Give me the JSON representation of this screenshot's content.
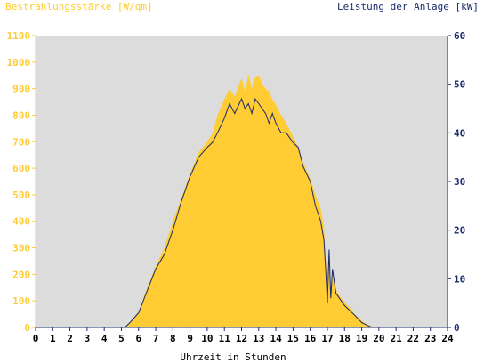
{
  "chart_data": {
    "type": "area",
    "xlabel": "Uhrzeit in Stunden",
    "y_left_label": "Bestrahlungsstärke [W/qm]",
    "y_right_label": "Leistung der Anlage [kW]",
    "xlim": [
      0,
      24
    ],
    "ylim_left": [
      0,
      1100
    ],
    "ylim_right": [
      0,
      60
    ],
    "x_ticks": [
      0,
      1,
      2,
      3,
      4,
      5,
      6,
      7,
      8,
      9,
      10,
      11,
      12,
      13,
      14,
      15,
      16,
      17,
      18,
      19,
      20,
      21,
      22,
      23,
      24
    ],
    "y_left_ticks": [
      0,
      100,
      200,
      300,
      400,
      500,
      600,
      700,
      800,
      900,
      1000,
      1100
    ],
    "y_right_ticks": [
      0,
      10,
      20,
      30,
      40,
      50,
      60
    ],
    "grid": false,
    "colors": {
      "plot_bg": "#dcdcdc",
      "irradiance_fill": "#ffcc33",
      "power_line": "#1a2a6c",
      "left_axis_text": "#ffcc33",
      "right_axis_text": "#1a2a6c",
      "x_axis_text": "#000000"
    },
    "series": [
      {
        "name": "Bestrahlungsstärke [W/qm]",
        "axis": "left",
        "style": "area",
        "x": [
          5.2,
          5.5,
          6.0,
          6.5,
          7.0,
          7.5,
          8.0,
          8.5,
          9.0,
          9.5,
          10.0,
          10.3,
          10.6,
          11.0,
          11.3,
          11.6,
          12.0,
          12.2,
          12.4,
          12.6,
          12.8,
          13.0,
          13.2,
          13.4,
          13.6,
          13.8,
          14.0,
          14.3,
          14.6,
          15.0,
          15.3,
          15.6,
          16.0,
          16.3,
          16.6,
          16.8,
          16.9,
          17.0,
          17.1,
          17.2,
          17.3,
          17.5,
          17.7,
          18.0,
          18.3,
          18.6,
          19.0,
          19.3,
          19.6,
          19.9,
          20.0
        ],
        "y": [
          0,
          20,
          60,
          150,
          230,
          300,
          400,
          490,
          580,
          660,
          700,
          730,
          800,
          860,
          900,
          870,
          940,
          890,
          955,
          900,
          945,
          950,
          920,
          900,
          890,
          860,
          840,
          800,
          770,
          720,
          680,
          620,
          560,
          500,
          450,
          380,
          260,
          150,
          250,
          120,
          200,
          140,
          120,
          95,
          75,
          50,
          25,
          10,
          5,
          0,
          0
        ]
      },
      {
        "name": "Leistung der Anlage [kW]",
        "axis": "right",
        "style": "line",
        "x": [
          5.2,
          5.5,
          6.0,
          6.5,
          7.0,
          7.5,
          8.0,
          8.5,
          9.0,
          9.5,
          10.0,
          10.3,
          10.6,
          11.0,
          11.3,
          11.6,
          12.0,
          12.2,
          12.4,
          12.6,
          12.8,
          13.0,
          13.2,
          13.4,
          13.6,
          13.8,
          14.0,
          14.3,
          14.6,
          15.0,
          15.3,
          15.6,
          16.0,
          16.3,
          16.6,
          16.8,
          16.9,
          17.0,
          17.1,
          17.2,
          17.3,
          17.5,
          17.7,
          18.0,
          18.3,
          18.6,
          19.0,
          19.3,
          19.6,
          19.9,
          20.0
        ],
        "y": [
          0,
          1,
          3,
          7.5,
          12,
          15,
          20,
          26,
          31,
          35,
          37,
          38,
          40,
          43,
          46,
          44,
          47,
          45,
          46,
          44,
          47,
          46,
          45,
          44,
          42,
          44,
          42,
          40,
          40,
          38,
          37,
          33,
          30,
          25,
          22,
          18,
          12,
          5,
          16,
          6,
          12,
          7,
          6,
          4.5,
          3.5,
          2.5,
          1,
          0.5,
          0,
          0,
          0
        ]
      }
    ]
  }
}
